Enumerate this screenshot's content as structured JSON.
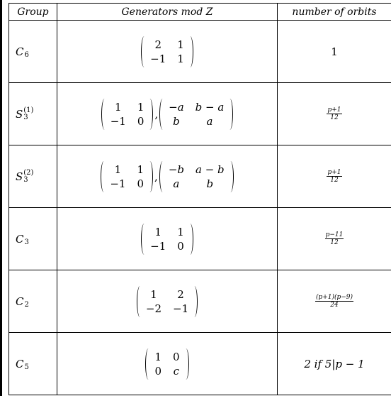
{
  "table": {
    "header": [
      "Group",
      "Generators mod Z",
      "number of orbits"
    ],
    "rows": [
      {
        "group": {
          "base": "C",
          "sub": "6"
        },
        "generators": [
          [
            [
              "2",
              "1"
            ],
            [
              "−1",
              "1"
            ]
          ]
        ],
        "orbits": {
          "text": "1"
        }
      },
      {
        "group": {
          "base": "S",
          "sub": "3",
          "sup": "(1)"
        },
        "separator": ",",
        "generators": [
          [
            [
              "1",
              "1"
            ],
            [
              "−1",
              "0"
            ]
          ],
          [
            [
              "−a",
              "b − a"
            ],
            [
              "b",
              "a"
            ]
          ]
        ],
        "orbits": {
          "num": "p+1",
          "den": "12"
        }
      },
      {
        "group": {
          "base": "S",
          "sub": "3",
          "sup": "(2)"
        },
        "separator": ",",
        "generators": [
          [
            [
              "1",
              "1"
            ],
            [
              "−1",
              "0"
            ]
          ],
          [
            [
              "−b",
              "a − b"
            ],
            [
              "a",
              "b"
            ]
          ]
        ],
        "orbits": {
          "num": "p+1",
          "den": "12"
        }
      },
      {
        "group": {
          "base": "C",
          "sub": "3"
        },
        "generators": [
          [
            [
              "1",
              "1"
            ],
            [
              "−1",
              "0"
            ]
          ]
        ],
        "orbits": {
          "num": "p−11",
          "den": "12"
        }
      },
      {
        "group": {
          "base": "C",
          "sub": "2"
        },
        "generators": [
          [
            [
              "1",
              "2"
            ],
            [
              "−2",
              "−1"
            ]
          ]
        ],
        "orbits": {
          "num": "(p+1)(p−9)",
          "den": "24"
        }
      },
      {
        "group": {
          "base": "C",
          "sub": "5"
        },
        "generators": [
          [
            [
              "1",
              "0"
            ],
            [
              "0",
              "c"
            ]
          ]
        ],
        "orbits": {
          "text": "2 if 5|p − 1"
        }
      }
    ]
  }
}
